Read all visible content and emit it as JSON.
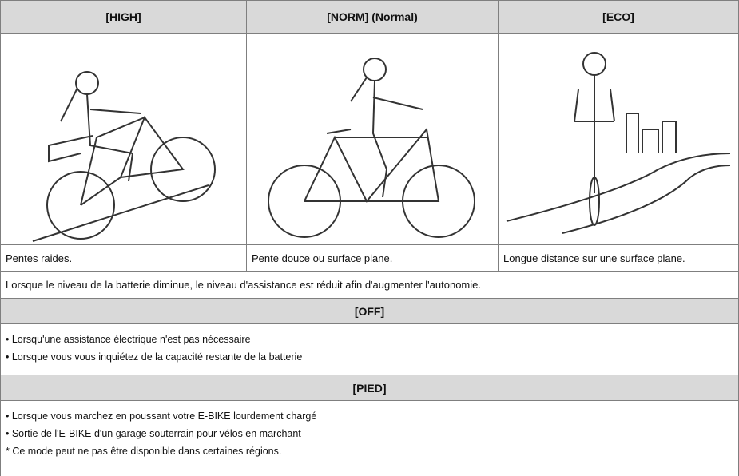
{
  "table": {
    "headers": [
      "[HIGH]",
      "[NORM] (Normal)",
      "[ECO]"
    ],
    "captions": [
      "Pentes raides.",
      "Pente douce ou surface plane.",
      "Longue distance sur une surface plane."
    ],
    "note_row": "Lorsque le niveau de la batterie diminue, le niveau d'assistance est réduit afin d'augmenter l'autonomie.",
    "sections": [
      {
        "title": "[OFF]",
        "items": [
          "• Lorsqu'une assistance électrique n'est pas nécessaire",
          "• Lorsque vous vous inquiétez de la capacité restante de la batterie"
        ]
      },
      {
        "title": "[PIED]",
        "items": [
          "• Lorsque vous marchez en poussant votre E-BIKE lourdement chargé",
          "• Sortie de l'E-BIKE d'un garage souterrain pour vélos en marchant",
          "* Ce mode peut ne pas être disponible dans certaines régions."
        ]
      }
    ]
  }
}
